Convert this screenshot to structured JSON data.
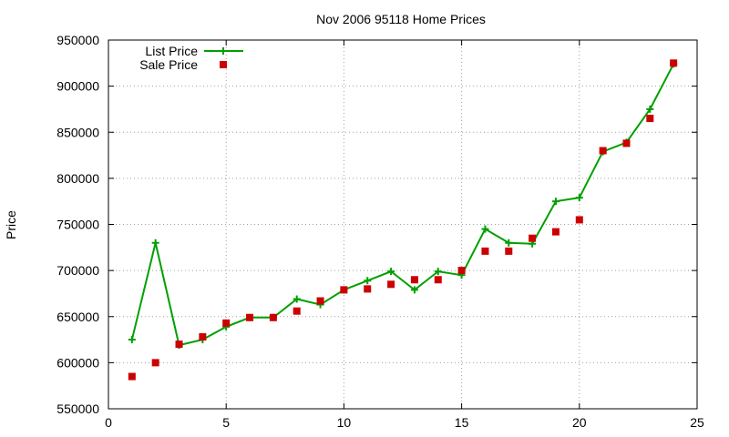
{
  "chart_data": {
    "type": "line",
    "title": "Nov 2006 95118 Home Prices",
    "xlabel": "",
    "ylabel": "Price",
    "xlim": [
      0,
      25
    ],
    "ylim": [
      550000,
      950000
    ],
    "x_ticks": [
      "0",
      "5",
      "10",
      "15",
      "20",
      "25"
    ],
    "y_ticks": [
      "550000",
      "600000",
      "650000",
      "700000",
      "750000",
      "800000",
      "850000",
      "900000",
      "950000"
    ],
    "grid": true,
    "legend_position": "top-left",
    "x": [
      1,
      2,
      3,
      4,
      5,
      6,
      7,
      8,
      9,
      10,
      11,
      12,
      13,
      14,
      15,
      16,
      17,
      18,
      19,
      20,
      21,
      22,
      23,
      24
    ],
    "series": [
      {
        "name": "List Price",
        "style": "line-with-plus-markers",
        "color": "#00a000",
        "values": [
          625000,
          730000,
          619000,
          625000,
          639000,
          649000,
          649000,
          669000,
          663000,
          679000,
          689000,
          699000,
          679000,
          699000,
          695000,
          745000,
          730000,
          729000,
          775000,
          779000,
          829000,
          839000,
          875000,
          924000
        ]
      },
      {
        "name": "Sale Price",
        "style": "square-markers",
        "color": "#cc0000",
        "values": [
          585000,
          600000,
          620000,
          628000,
          643000,
          649000,
          649000,
          656000,
          667000,
          679000,
          680000,
          685000,
          690000,
          690000,
          700000,
          721000,
          721000,
          735000,
          742000,
          755000,
          830000,
          838000,
          865000,
          925000
        ]
      }
    ]
  }
}
